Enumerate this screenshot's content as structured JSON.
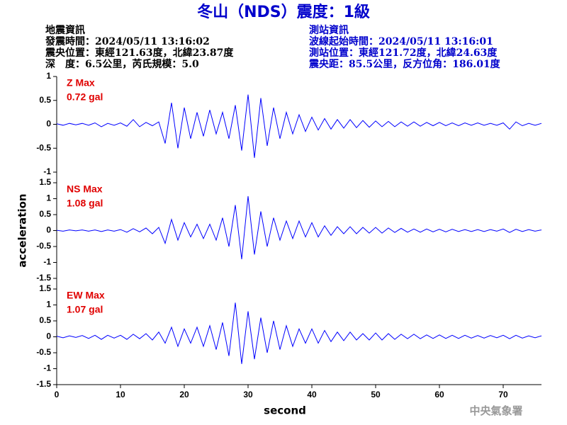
{
  "header": {
    "title": "冬山（NDS）震度：1級",
    "quake": [
      "地震資訊",
      "發震時間：2024/05/11 13:16:02",
      "震央位置：東經121.63度，北緯23.87度",
      "深　度：6.5公里，芮氏規模：5.0"
    ],
    "station": [
      "測站資訊",
      "波線起始時間：2024/05/11 13:16:01",
      "測站位置：東經121.72度，北緯24.63度",
      "震央距：85.5公里，反方位角：186.01度"
    ],
    "footer": "中央氣象署"
  },
  "chart_data": [
    {
      "type": "line",
      "annotation": "Z Max",
      "max_label": "0.72 gal",
      "color": "#0000ff",
      "xlim": [
        0,
        76
      ],
      "ylim": [
        -1,
        1
      ],
      "yticks": [
        -1,
        -0.5,
        0,
        0.5,
        1
      ],
      "x": [
        0,
        1,
        2,
        3,
        4,
        5,
        6,
        7,
        8,
        9,
        10,
        11,
        12,
        13,
        14,
        15,
        16,
        17,
        18,
        19,
        20,
        21,
        22,
        23,
        24,
        25,
        26,
        27,
        28,
        29,
        30,
        31,
        32,
        33,
        34,
        35,
        36,
        37,
        38,
        39,
        40,
        41,
        42,
        43,
        44,
        45,
        46,
        47,
        48,
        49,
        50,
        51,
        52,
        53,
        54,
        55,
        56,
        57,
        58,
        59,
        60,
        61,
        62,
        63,
        64,
        65,
        66,
        67,
        68,
        69,
        70,
        71,
        72,
        73,
        74,
        75,
        76
      ],
      "values": [
        0.01,
        -0.02,
        0.02,
        -0.01,
        0.02,
        -0.02,
        0.03,
        -0.05,
        0.02,
        -0.02,
        0.03,
        -0.04,
        0.1,
        -0.05,
        0.04,
        -0.03,
        0.05,
        -0.4,
        0.45,
        -0.5,
        0.35,
        -0.3,
        0.25,
        -0.25,
        0.3,
        -0.2,
        0.25,
        -0.3,
        0.4,
        -0.55,
        0.62,
        -0.7,
        0.55,
        -0.45,
        0.35,
        -0.3,
        0.25,
        -0.2,
        0.2,
        -0.15,
        0.15,
        -0.12,
        0.12,
        -0.1,
        0.1,
        -0.08,
        0.1,
        -0.07,
        0.08,
        -0.06,
        0.07,
        -0.05,
        0.06,
        -0.05,
        0.05,
        -0.04,
        0.05,
        -0.04,
        0.04,
        -0.03,
        0.04,
        -0.03,
        0.03,
        -0.03,
        0.03,
        -0.02,
        0.03,
        -0.02,
        0.02,
        -0.02,
        0.03,
        -0.1,
        0.05,
        -0.03,
        0.02,
        -0.02,
        0.02
      ]
    },
    {
      "type": "line",
      "annotation": "NS Max",
      "max_label": "1.08 gal",
      "ylabel": "acceleration",
      "color": "#0000ff",
      "xlim": [
        0,
        76
      ],
      "ylim": [
        -1.5,
        1.5
      ],
      "yticks": [
        -1.5,
        -1,
        -0.5,
        0,
        0.5,
        1,
        1.5
      ],
      "x": [
        0,
        1,
        2,
        3,
        4,
        5,
        6,
        7,
        8,
        9,
        10,
        11,
        12,
        13,
        14,
        15,
        16,
        17,
        18,
        19,
        20,
        21,
        22,
        23,
        24,
        25,
        26,
        27,
        28,
        29,
        30,
        31,
        32,
        33,
        34,
        35,
        36,
        37,
        38,
        39,
        40,
        41,
        42,
        43,
        44,
        45,
        46,
        47,
        48,
        49,
        50,
        51,
        52,
        53,
        54,
        55,
        56,
        57,
        58,
        59,
        60,
        61,
        62,
        63,
        64,
        65,
        66,
        67,
        68,
        69,
        70,
        71,
        72,
        73,
        74,
        75,
        76
      ],
      "values": [
        0.01,
        -0.02,
        0.02,
        -0.01,
        0.02,
        -0.02,
        0.02,
        -0.03,
        0.02,
        -0.02,
        0.03,
        -0.05,
        0.06,
        -0.04,
        0.08,
        -0.1,
        0.1,
        -0.4,
        0.35,
        -0.3,
        0.25,
        -0.2,
        0.2,
        -0.25,
        0.2,
        -0.3,
        0.4,
        -0.5,
        0.8,
        -0.9,
        1.08,
        -0.75,
        0.6,
        -0.5,
        0.4,
        -0.3,
        0.3,
        -0.25,
        0.3,
        -0.2,
        0.25,
        -0.2,
        0.15,
        -0.15,
        0.12,
        -0.1,
        0.12,
        -0.1,
        0.1,
        -0.08,
        0.1,
        -0.08,
        0.08,
        -0.06,
        0.07,
        -0.05,
        0.05,
        -0.05,
        0.05,
        -0.04,
        0.04,
        -0.04,
        0.04,
        -0.03,
        0.03,
        -0.03,
        0.03,
        -0.03,
        0.03,
        -0.02,
        0.05,
        -0.06,
        0.04,
        -0.03,
        0.03,
        -0.02,
        0.02
      ]
    },
    {
      "type": "line",
      "annotation": "EW Max",
      "max_label": "1.07 gal",
      "xlabel": "second",
      "color": "#0000ff",
      "xlim": [
        0,
        76
      ],
      "xticks": [
        0,
        10,
        20,
        30,
        40,
        50,
        60,
        70
      ],
      "ylim": [
        -1.5,
        1.5
      ],
      "yticks": [
        -1.5,
        -1,
        -0.5,
        0,
        0.5,
        1,
        1.5
      ],
      "x": [
        0,
        1,
        2,
        3,
        4,
        5,
        6,
        7,
        8,
        9,
        10,
        11,
        12,
        13,
        14,
        15,
        16,
        17,
        18,
        19,
        20,
        21,
        22,
        23,
        24,
        25,
        26,
        27,
        28,
        29,
        30,
        31,
        32,
        33,
        34,
        35,
        36,
        37,
        38,
        39,
        40,
        41,
        42,
        43,
        44,
        45,
        46,
        47,
        48,
        49,
        50,
        51,
        52,
        53,
        54,
        55,
        56,
        57,
        58,
        59,
        60,
        61,
        62,
        63,
        64,
        65,
        66,
        67,
        68,
        69,
        70,
        71,
        72,
        73,
        74,
        75,
        76
      ],
      "values": [
        0.02,
        -0.03,
        0.03,
        -0.02,
        0.04,
        -0.05,
        0.05,
        -0.08,
        0.05,
        -0.04,
        0.05,
        -0.08,
        0.08,
        -0.06,
        0.1,
        -0.1,
        0.15,
        -0.2,
        0.3,
        -0.3,
        0.25,
        -0.2,
        0.3,
        -0.3,
        0.35,
        -0.4,
        0.45,
        -0.6,
        1.07,
        -0.85,
        0.8,
        -0.7,
        0.6,
        -0.5,
        0.5,
        -0.4,
        0.35,
        -0.3,
        0.25,
        -0.2,
        0.25,
        -0.2,
        0.2,
        -0.15,
        0.15,
        -0.12,
        0.15,
        -0.1,
        0.1,
        -0.1,
        0.12,
        -0.1,
        0.1,
        -0.08,
        0.08,
        -0.06,
        0.08,
        -0.06,
        0.06,
        -0.05,
        0.06,
        -0.05,
        0.05,
        -0.05,
        0.05,
        -0.04,
        0.04,
        -0.04,
        0.04,
        -0.03,
        0.05,
        -0.06,
        0.05,
        -0.04,
        0.03,
        -0.03,
        0.03
      ]
    }
  ]
}
